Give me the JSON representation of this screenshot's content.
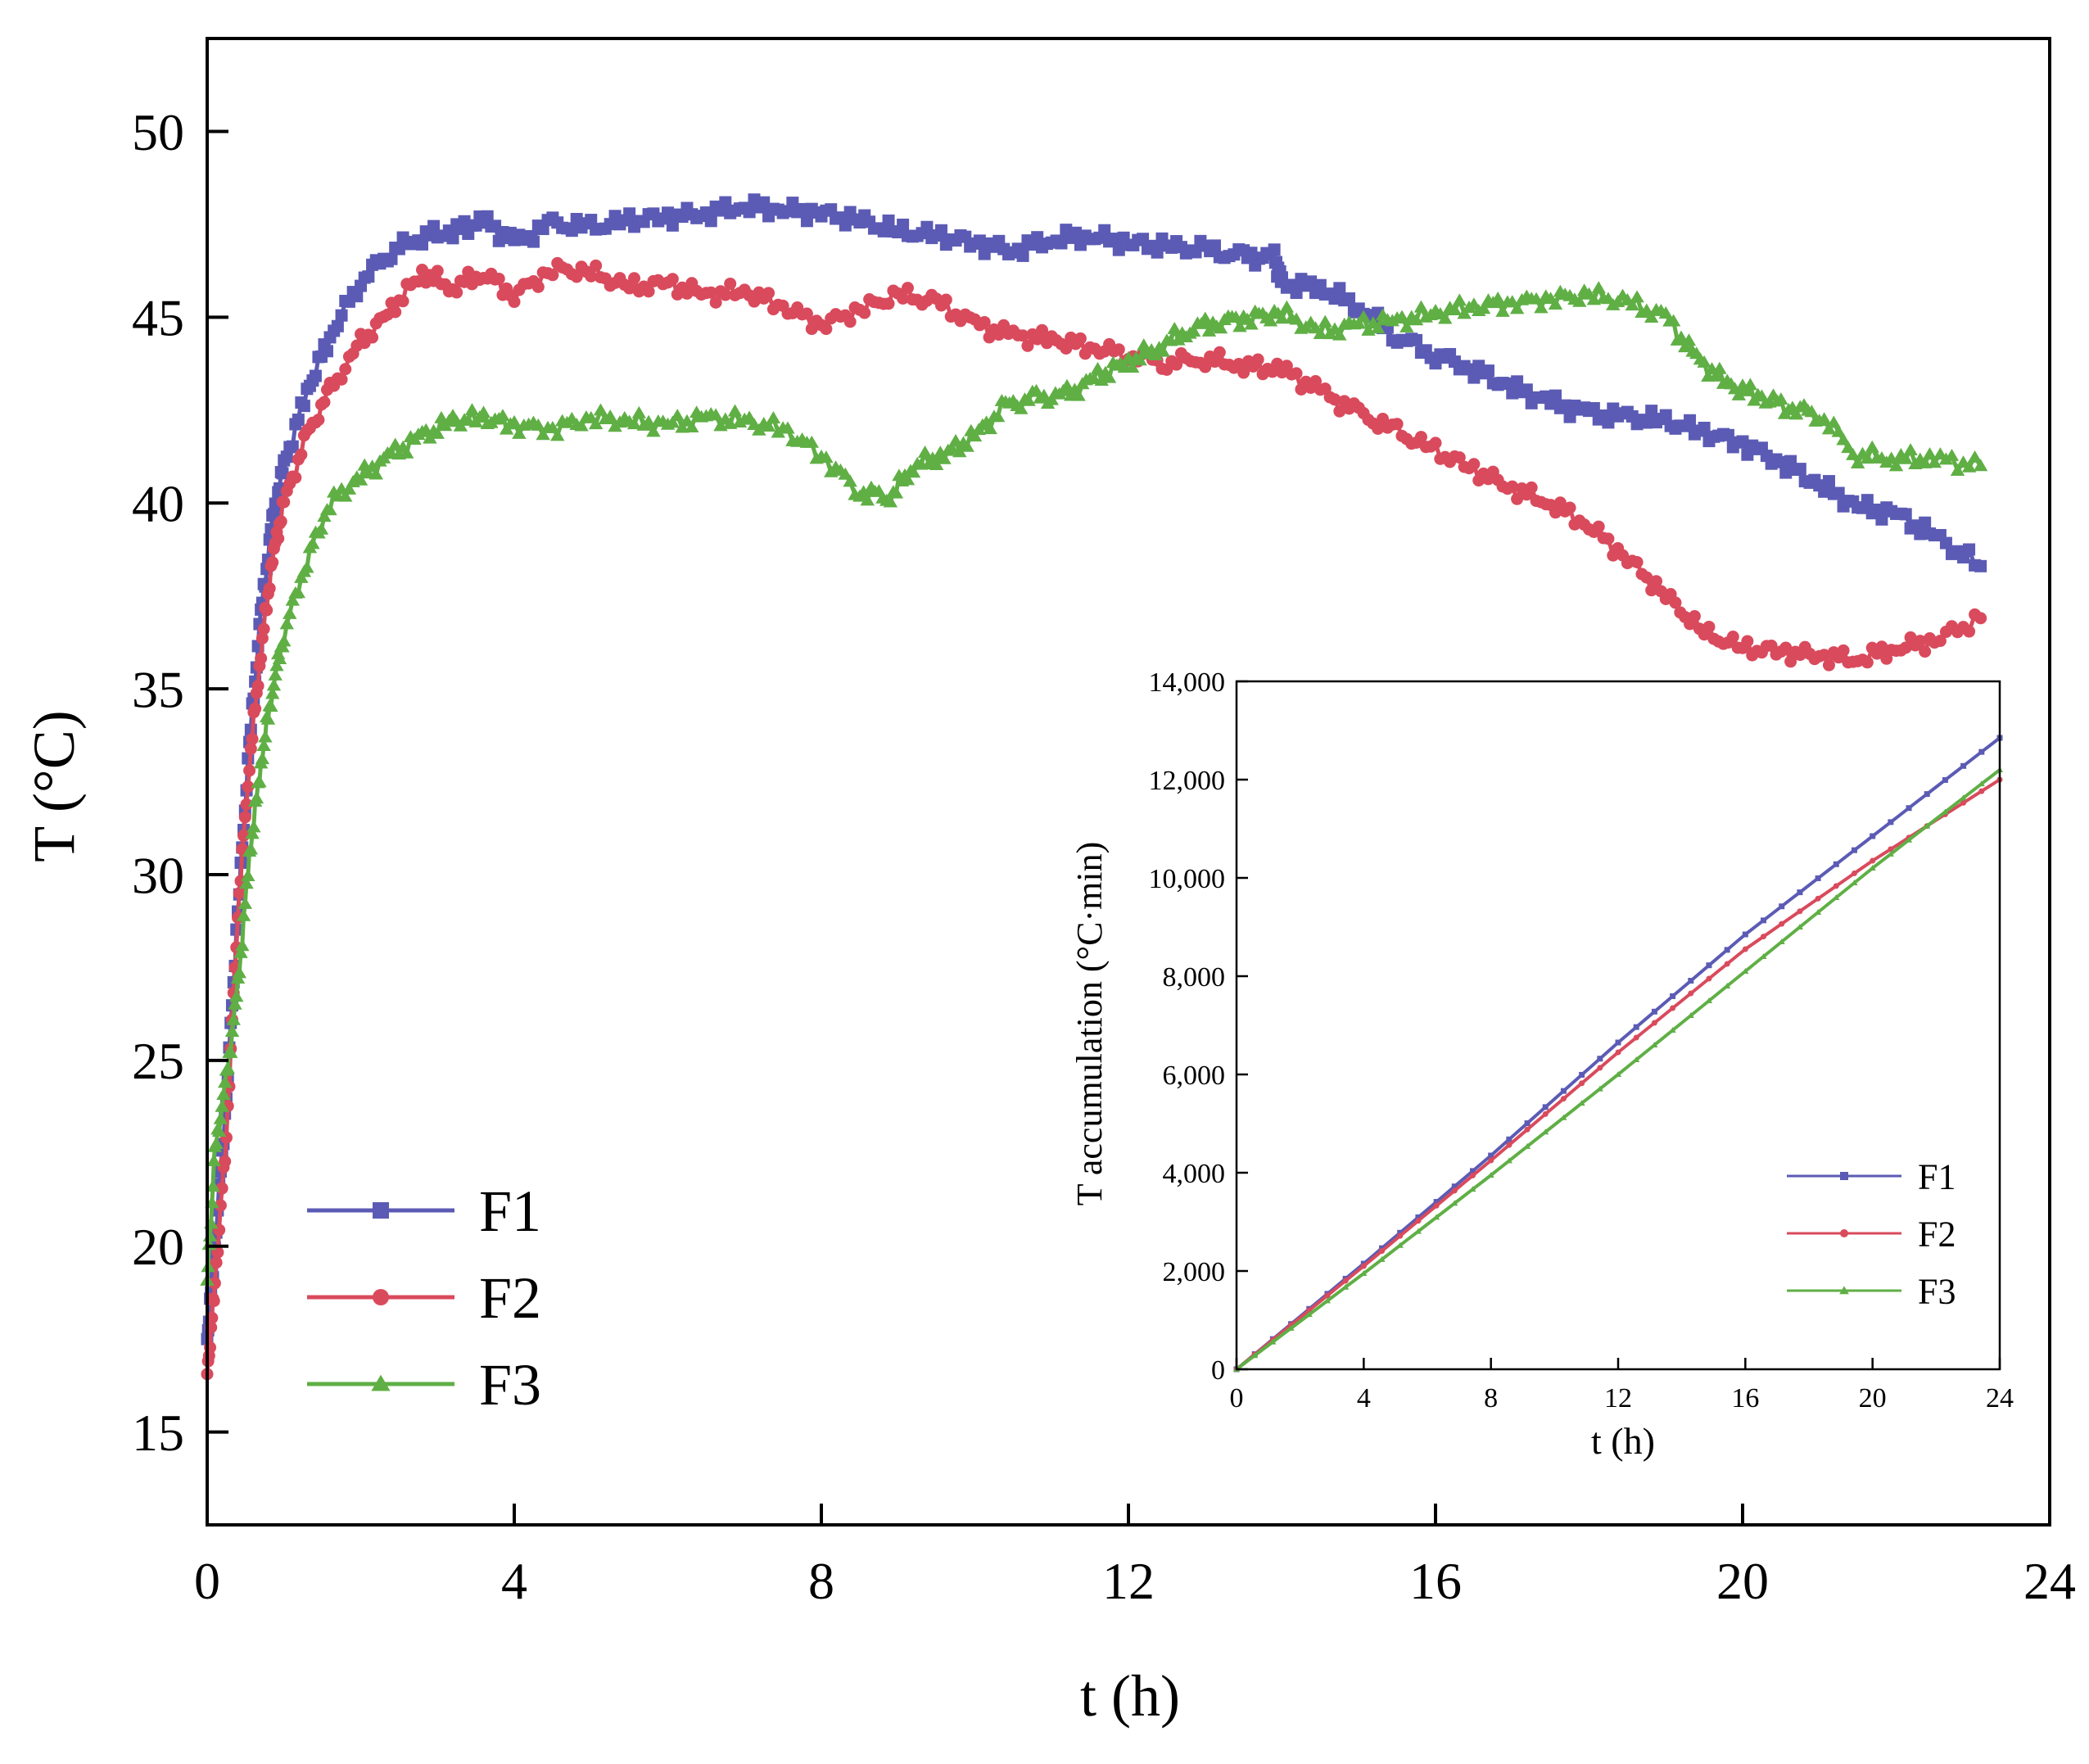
{
  "colors": {
    "F1": "#5b5bb5",
    "F2": "#d94a5c",
    "F3": "#5faf45"
  },
  "chart_data": [
    {
      "id": "main",
      "type": "line",
      "title": "",
      "xlabel": "t (h)",
      "ylabel": "T (°C)",
      "xlim": [
        0,
        24
      ],
      "ylim": [
        12.5,
        52.5
      ],
      "xticks": [
        0,
        4,
        8,
        12,
        16,
        20,
        24
      ],
      "yticks": [
        15,
        20,
        25,
        30,
        35,
        40,
        45,
        50
      ],
      "grid": false,
      "legend": "bottom-left",
      "series": [
        {
          "name": "F1",
          "marker": "square",
          "x": [
            0,
            0.1,
            0.25,
            0.4,
            0.55,
            0.7,
            0.85,
            1.0,
            1.3,
            1.6,
            2.0,
            2.4,
            2.8,
            3.2,
            3.6,
            4.0,
            4.5,
            5.0,
            5.5,
            6.0,
            6.5,
            7.0,
            7.5,
            8.0,
            8.5,
            9.0,
            9.5,
            10.0,
            10.5,
            11.0,
            11.5,
            12.0,
            12.5,
            13.0,
            13.5,
            13.9,
            14.0,
            14.5,
            15.0,
            15.5,
            16.0,
            16.5,
            17.0,
            17.5,
            18.0,
            18.5,
            19.0,
            19.5,
            20.0,
            20.5,
            21.0,
            21.5,
            22.0,
            22.5,
            23.1
          ],
          "y": [
            17.5,
            20,
            24,
            29,
            33.5,
            37,
            39.5,
            41,
            43,
            44.5,
            46,
            46.8,
            47.2,
            47.3,
            47.6,
            47.0,
            47.5,
            47.4,
            47.6,
            47.7,
            47.8,
            48.0,
            47.9,
            47.8,
            47.6,
            47.3,
            47.2,
            47.0,
            46.8,
            47.1,
            47.2,
            47.0,
            46.9,
            46.8,
            46.6,
            46.6,
            45.9,
            45.8,
            45.3,
            44.5,
            44.0,
            43.6,
            43.1,
            42.7,
            42.4,
            42.3,
            42.2,
            41.9,
            41.6,
            41.1,
            40.5,
            39.9,
            39.7,
            39.1,
            38.3
          ]
        },
        {
          "name": "F2",
          "marker": "circle",
          "x": [
            0,
            0.1,
            0.25,
            0.4,
            0.55,
            0.7,
            0.85,
            1.0,
            1.3,
            1.6,
            2.0,
            2.4,
            2.8,
            3.2,
            3.6,
            4.0,
            4.5,
            5.0,
            5.5,
            6.0,
            6.5,
            7.0,
            7.5,
            8.0,
            8.5,
            9.0,
            9.5,
            10.0,
            10.5,
            11.0,
            11.5,
            12.0,
            12.5,
            13.0,
            13.5,
            14.0,
            14.5,
            15.0,
            15.5,
            16.0,
            16.5,
            17.0,
            17.5,
            18.0,
            18.5,
            19.0,
            19.5,
            20.0,
            20.5,
            21.0,
            21.5,
            22.0,
            22.5,
            23.1
          ],
          "y": [
            16.5,
            19,
            23,
            29,
            33,
            36,
            38.5,
            40,
            41.8,
            43,
            44.3,
            45.2,
            46.2,
            45.8,
            46.2,
            45.6,
            46.3,
            46.2,
            45.8,
            45.9,
            45.6,
            45.7,
            45.3,
            44.8,
            45.2,
            45.6,
            45.4,
            44.8,
            44.5,
            44.4,
            44.2,
            44.0,
            43.8,
            43.9,
            43.7,
            43.6,
            43.0,
            42.4,
            41.9,
            41.4,
            40.9,
            40.4,
            40.0,
            39.4,
            38.5,
            37.5,
            36.5,
            36.1,
            36.0,
            35.9,
            35.8,
            36.1,
            36.3,
            36.9
          ]
        },
        {
          "name": "F3",
          "marker": "triangle",
          "x": [
            0,
            0.1,
            0.25,
            0.4,
            0.55,
            0.7,
            0.85,
            1.0,
            1.3,
            1.6,
            2.0,
            2.4,
            2.8,
            3.2,
            3.6,
            4.0,
            4.5,
            5.0,
            5.5,
            6.0,
            6.5,
            7.0,
            7.5,
            8.0,
            8.5,
            8.9,
            9.2,
            9.6,
            10.0,
            10.4,
            10.8,
            11.2,
            11.6,
            12.0,
            12.4,
            12.8,
            13.2,
            13.6,
            14.0,
            14.5,
            15.0,
            15.5,
            16.0,
            16.5,
            17.0,
            17.5,
            18.0,
            18.5,
            19.0,
            19.4,
            19.8,
            20.2,
            20.6,
            21.0,
            21.5,
            22.0,
            22.5,
            23.1
          ],
          "y": [
            19,
            22.5,
            24.5,
            27,
            30.5,
            33,
            35,
            36.5,
            38.5,
            40,
            40.7,
            41.3,
            41.8,
            42.2,
            42.3,
            42.1,
            42.0,
            42.3,
            42.2,
            42.1,
            42.3,
            42.2,
            42.0,
            41.3,
            40.3,
            40.2,
            41.0,
            41.3,
            41.8,
            42.6,
            42.8,
            42.9,
            43.4,
            43.8,
            44.2,
            44.7,
            44.9,
            45.0,
            45.1,
            44.6,
            44.8,
            44.9,
            45.1,
            45.3,
            45.4,
            45.5,
            45.6,
            45.4,
            45.0,
            43.9,
            43.2,
            42.9,
            42.6,
            42.4,
            41.3,
            41.2,
            41.2,
            41.0
          ]
        }
      ]
    },
    {
      "id": "inset",
      "type": "line",
      "title": "",
      "xlabel": "t (h)",
      "ylabel": "T accumulation (°C·min)",
      "xlim": [
        0,
        24
      ],
      "ylim": [
        0,
        14000
      ],
      "xticks": [
        0,
        4,
        8,
        12,
        16,
        20,
        24
      ],
      "yticks": [
        0,
        2000,
        4000,
        6000,
        8000,
        10000,
        12000,
        14000
      ],
      "ytick_labels": [
        "0",
        "2,000",
        "4,000",
        "6,000",
        "8,000",
        "10,000",
        "12,000",
        "14,000"
      ],
      "grid": false,
      "legend": "bottom-right",
      "series": [
        {
          "name": "F1",
          "marker": "square",
          "x": [
            0,
            4,
            8,
            12,
            16,
            20,
            24
          ],
          "y": [
            0,
            2150,
            4350,
            6650,
            8850,
            10850,
            12850
          ]
        },
        {
          "name": "F2",
          "marker": "circle",
          "x": [
            0,
            4,
            8,
            12,
            16,
            20,
            24
          ],
          "y": [
            0,
            2100,
            4250,
            6450,
            8550,
            10350,
            12000
          ]
        },
        {
          "name": "F3",
          "marker": "triangle",
          "x": [
            0,
            4,
            8,
            12,
            16,
            20,
            24
          ],
          "y": [
            0,
            1950,
            3950,
            6000,
            8100,
            10200,
            12200
          ]
        }
      ]
    }
  ]
}
